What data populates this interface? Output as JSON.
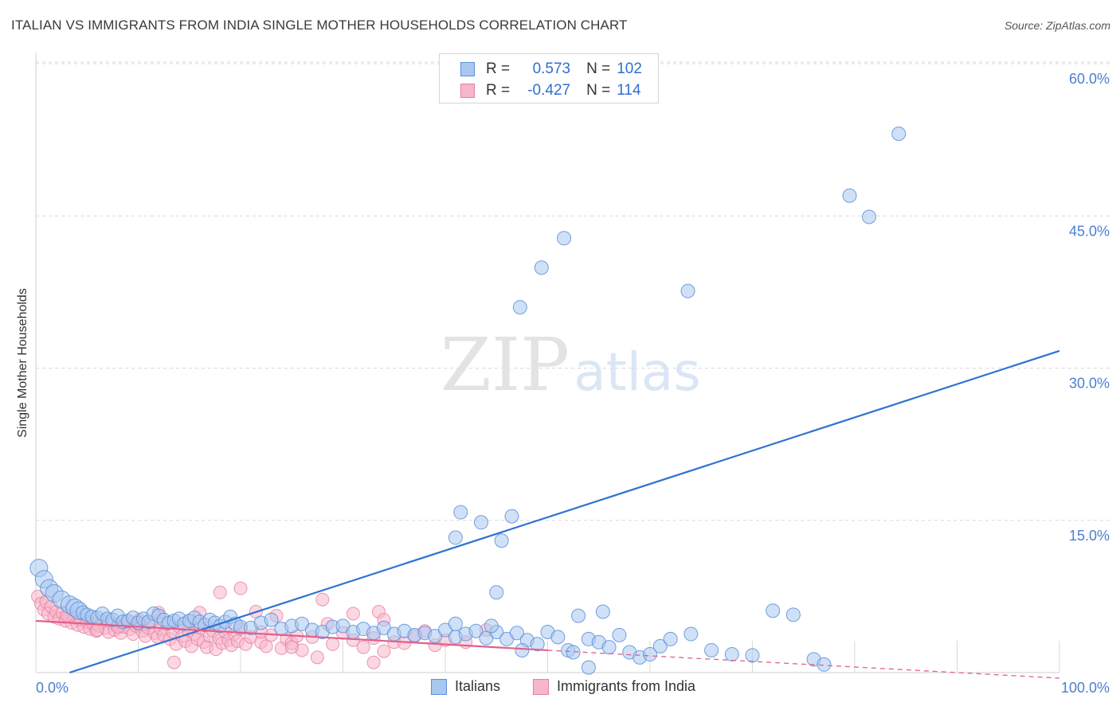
{
  "header": {
    "title": "ITALIAN VS IMMIGRANTS FROM INDIA SINGLE MOTHER HOUSEHOLDS CORRELATION CHART",
    "source": "Source: ZipAtlas.com"
  },
  "watermark": {
    "zip": "ZIP",
    "atlas": "atlas"
  },
  "legend": {
    "series1": {
      "r_label": "R =",
      "r_value": "0.573",
      "n_label": "N =",
      "n_value": "102"
    },
    "series2": {
      "r_label": "R =",
      "r_value": "-0.427",
      "n_label": "N =",
      "n_value": "114"
    }
  },
  "colors": {
    "blue_fill": "#a9c8f0",
    "blue_stroke": "#5b8fd8",
    "blue_line": "#2f72d2",
    "pink_fill": "#f7b7cb",
    "pink_stroke": "#e77fa0",
    "pink_line": "#e0608a",
    "grid": "#d9d9d9",
    "tick_text": "#4a7fd0"
  },
  "chart_data": {
    "type": "scatter",
    "title": "ITALIAN VS IMMIGRANTS FROM INDIA SINGLE MOTHER HOUSEHOLDS CORRELATION CHART",
    "xlabel": "",
    "ylabel": "Single Mother Households",
    "xlim": [
      0,
      100
    ],
    "ylim": [
      0,
      65
    ],
    "y_ticks": [
      15,
      30,
      45,
      60
    ],
    "y_tick_labels": [
      "15.0%",
      "30.0%",
      "45.0%",
      "60.0%"
    ],
    "x_tick_labels": [
      "0.0%",
      "100.0%"
    ],
    "grid": true,
    "legend_position": "top-center",
    "series": [
      {
        "name": "Italians",
        "r": 0.573,
        "n": 102,
        "trend": {
          "x0": 3.3,
          "y0": 0.0,
          "x1": 100.0,
          "y1": 31.7
        },
        "points": [
          [
            0.3,
            10.3
          ],
          [
            0.8,
            9.2
          ],
          [
            1.3,
            8.3
          ],
          [
            1.8,
            7.8
          ],
          [
            2.5,
            7.2
          ],
          [
            3.3,
            6.7
          ],
          [
            3.8,
            6.4
          ],
          [
            4.2,
            6.1
          ],
          [
            4.6,
            5.9
          ],
          [
            5.0,
            5.7
          ],
          [
            5.5,
            5.5
          ],
          [
            6.0,
            5.4
          ],
          [
            6.5,
            5.8
          ],
          [
            7.0,
            5.3
          ],
          [
            7.5,
            5.2
          ],
          [
            8.0,
            5.6
          ],
          [
            8.5,
            5.0
          ],
          [
            9.0,
            5.1
          ],
          [
            9.5,
            5.4
          ],
          [
            10.0,
            4.9
          ],
          [
            10.5,
            5.3
          ],
          [
            11.0,
            5.0
          ],
          [
            11.5,
            5.8
          ],
          [
            12.0,
            5.6
          ],
          [
            12.5,
            5.2
          ],
          [
            13.0,
            4.9
          ],
          [
            13.5,
            5.1
          ],
          [
            14.0,
            5.3
          ],
          [
            14.5,
            4.8
          ],
          [
            15.0,
            5.1
          ],
          [
            15.5,
            5.4
          ],
          [
            16.0,
            5.0
          ],
          [
            16.5,
            4.7
          ],
          [
            17.0,
            5.2
          ],
          [
            17.5,
            4.9
          ],
          [
            18.0,
            4.6
          ],
          [
            18.5,
            5.0
          ],
          [
            19.0,
            5.5
          ],
          [
            19.5,
            4.8
          ],
          [
            20.0,
            4.5
          ],
          [
            21.0,
            4.4
          ],
          [
            22.0,
            4.9
          ],
          [
            23.0,
            5.2
          ],
          [
            24.0,
            4.3
          ],
          [
            25.0,
            4.6
          ],
          [
            26.0,
            4.8
          ],
          [
            27.0,
            4.2
          ],
          [
            28.0,
            4.0
          ],
          [
            29.0,
            4.5
          ],
          [
            30.0,
            4.6
          ],
          [
            31.0,
            4.0
          ],
          [
            32.0,
            4.3
          ],
          [
            33.0,
            3.9
          ],
          [
            34.0,
            4.4
          ],
          [
            35.0,
            3.8
          ],
          [
            36.0,
            4.1
          ],
          [
            37.0,
            3.7
          ],
          [
            38.0,
            3.9
          ],
          [
            39.0,
            3.6
          ],
          [
            40.0,
            4.2
          ],
          [
            41.0,
            3.5
          ],
          [
            42.0,
            3.8
          ],
          [
            43.0,
            4.1
          ],
          [
            44.0,
            3.4
          ],
          [
            45.0,
            4.0
          ],
          [
            46.0,
            3.3
          ],
          [
            47.0,
            3.9
          ],
          [
            48.0,
            3.2
          ],
          [
            49.0,
            2.8
          ],
          [
            50.0,
            4.0
          ],
          [
            51.0,
            3.5
          ],
          [
            52.0,
            2.2
          ],
          [
            53.0,
            5.6
          ],
          [
            54.0,
            3.3
          ],
          [
            55.0,
            3.0
          ],
          [
            56.0,
            2.5
          ],
          [
            57.0,
            3.7
          ],
          [
            58.0,
            2.0
          ],
          [
            59.0,
            1.5
          ],
          [
            60.0,
            1.8
          ],
          [
            61.0,
            2.6
          ],
          [
            62.0,
            3.3
          ],
          [
            64.0,
            3.8
          ],
          [
            66.0,
            2.2
          ],
          [
            68.0,
            1.8
          ],
          [
            70.0,
            1.7
          ],
          [
            72.0,
            6.1
          ],
          [
            74.0,
            5.7
          ],
          [
            76.0,
            1.3
          ],
          [
            77.0,
            0.8
          ],
          [
            41.0,
            4.8
          ],
          [
            44.5,
            4.6
          ],
          [
            52.5,
            2.0
          ],
          [
            54.0,
            0.5
          ],
          [
            41.5,
            15.8
          ],
          [
            43.5,
            14.8
          ],
          [
            41.0,
            13.3
          ],
          [
            46.5,
            15.4
          ],
          [
            45.5,
            13.0
          ],
          [
            45.0,
            7.9
          ],
          [
            55.4,
            6.0
          ],
          [
            47.5,
            2.2
          ],
          [
            47.3,
            36.0
          ],
          [
            49.4,
            39.9
          ],
          [
            51.6,
            42.8
          ],
          [
            63.7,
            37.6
          ],
          [
            79.5,
            47.0
          ],
          [
            81.4,
            44.9
          ],
          [
            84.3,
            53.1
          ]
        ]
      },
      {
        "name": "Immigrants from India",
        "r": -0.427,
        "n": 114,
        "trend": {
          "x0": 0.0,
          "y0": 5.1,
          "x1": 50.0,
          "y1": 2.2,
          "dash_x1": 100.0,
          "dash_y1": -0.8
        },
        "points": [
          [
            0.2,
            7.5
          ],
          [
            0.5,
            6.8
          ],
          [
            0.8,
            6.2
          ],
          [
            1.0,
            7.0
          ],
          [
            1.2,
            5.8
          ],
          [
            1.5,
            6.5
          ],
          [
            1.8,
            5.5
          ],
          [
            2.0,
            6.0
          ],
          [
            2.3,
            5.3
          ],
          [
            2.6,
            5.9
          ],
          [
            2.9,
            5.1
          ],
          [
            3.2,
            5.6
          ],
          [
            3.5,
            4.9
          ],
          [
            3.8,
            5.4
          ],
          [
            4.1,
            4.7
          ],
          [
            4.4,
            5.2
          ],
          [
            4.7,
            4.5
          ],
          [
            5.0,
            5.0
          ],
          [
            5.3,
            4.3
          ],
          [
            5.6,
            4.8
          ],
          [
            5.9,
            4.1
          ],
          [
            6.2,
            4.6
          ],
          [
            6.5,
            5.1
          ],
          [
            6.8,
            4.4
          ],
          [
            7.1,
            4.0
          ],
          [
            7.4,
            4.9
          ],
          [
            7.7,
            4.2
          ],
          [
            8.0,
            4.7
          ],
          [
            8.3,
            3.9
          ],
          [
            8.6,
            4.5
          ],
          [
            8.9,
            5.0
          ],
          [
            9.2,
            4.3
          ],
          [
            9.5,
            3.8
          ],
          [
            9.8,
            4.6
          ],
          [
            10.1,
            5.2
          ],
          [
            10.4,
            4.1
          ],
          [
            10.7,
            3.6
          ],
          [
            11.0,
            4.4
          ],
          [
            11.3,
            4.9
          ],
          [
            11.6,
            3.9
          ],
          [
            11.9,
            3.5
          ],
          [
            12.2,
            4.3
          ],
          [
            12.5,
            3.7
          ],
          [
            12.8,
            4.8
          ],
          [
            13.1,
            3.3
          ],
          [
            13.4,
            4.0
          ],
          [
            13.7,
            2.8
          ],
          [
            14.0,
            4.5
          ],
          [
            14.3,
            3.6
          ],
          [
            14.6,
            3.1
          ],
          [
            14.9,
            4.2
          ],
          [
            15.2,
            2.6
          ],
          [
            15.5,
            3.8
          ],
          [
            15.8,
            3.3
          ],
          [
            16.1,
            4.4
          ],
          [
            16.4,
            3.0
          ],
          [
            16.7,
            2.5
          ],
          [
            17.0,
            3.6
          ],
          [
            17.3,
            4.1
          ],
          [
            17.6,
            2.3
          ],
          [
            17.9,
            3.4
          ],
          [
            18.2,
            2.9
          ],
          [
            18.5,
            4.0
          ],
          [
            18.8,
            3.2
          ],
          [
            19.1,
            2.7
          ],
          [
            19.4,
            3.8
          ],
          [
            19.7,
            3.1
          ],
          [
            20.0,
            4.3
          ],
          [
            20.5,
            2.8
          ],
          [
            21.0,
            3.5
          ],
          [
            21.5,
            6.0
          ],
          [
            22.0,
            3.0
          ],
          [
            22.5,
            2.6
          ],
          [
            23.0,
            3.7
          ],
          [
            23.5,
            5.6
          ],
          [
            24.0,
            2.4
          ],
          [
            24.5,
            3.3
          ],
          [
            25.0,
            2.9
          ],
          [
            25.5,
            3.6
          ],
          [
            26.0,
            2.2
          ],
          [
            27.0,
            3.5
          ],
          [
            28.0,
            7.2
          ],
          [
            29.0,
            2.8
          ],
          [
            30.0,
            3.9
          ],
          [
            31.0,
            3.2
          ],
          [
            32.0,
            2.5
          ],
          [
            33.0,
            3.4
          ],
          [
            34.0,
            2.1
          ],
          [
            35.0,
            3.0
          ],
          [
            36.0,
            2.9
          ],
          [
            37.0,
            3.6
          ],
          [
            38.0,
            4.1
          ],
          [
            39.0,
            2.7
          ],
          [
            40.0,
            3.2
          ],
          [
            42.0,
            3.0
          ],
          [
            44.0,
            4.2
          ],
          [
            13.5,
            1.0
          ],
          [
            16.0,
            5.9
          ],
          [
            18.0,
            7.9
          ],
          [
            20.0,
            8.3
          ],
          [
            27.5,
            1.5
          ],
          [
            31.0,
            5.8
          ],
          [
            33.0,
            1.0
          ],
          [
            33.5,
            6.0
          ],
          [
            34.0,
            5.2
          ],
          [
            25.0,
            2.5
          ],
          [
            8.0,
            4.5
          ],
          [
            12.0,
            5.9
          ],
          [
            15.0,
            5.1
          ],
          [
            22.0,
            4.0
          ],
          [
            28.5,
            4.8
          ],
          [
            3.0,
            5.6
          ],
          [
            6.0,
            4.2
          ],
          [
            10.0,
            4.8
          ]
        ]
      }
    ]
  },
  "bottom_legend": {
    "item1": "Italians",
    "item2": "Immigrants from India"
  }
}
